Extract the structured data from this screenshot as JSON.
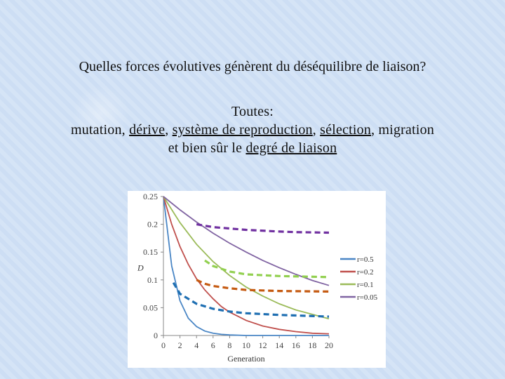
{
  "question": "Quelles forces évolutives génèrent du déséquilibre de liaison?",
  "answer": {
    "line1": "Toutes:",
    "line2_segments": [
      {
        "text": "mutation, ",
        "underline": false
      },
      {
        "text": "dérive",
        "underline": true
      },
      {
        "text": ", ",
        "underline": false
      },
      {
        "text": "système de reproduction",
        "underline": true
      },
      {
        "text": ", ",
        "underline": false
      },
      {
        "text": "sélection",
        "underline": true
      },
      {
        "text": ", migration",
        "underline": false
      }
    ],
    "line3_prefix": "et bien sûr le ",
    "line3_underlined": "degré de liaison"
  },
  "chart_data": {
    "type": "line",
    "xlabel": "Generation",
    "ylabel": "D",
    "xlim": [
      0,
      20
    ],
    "ylim": [
      0,
      0.25
    ],
    "x_ticks": [
      "0",
      "2",
      "4",
      "6",
      "8",
      "10",
      "12",
      "14",
      "16",
      "18",
      "20"
    ],
    "y_ticks": [
      "0",
      "0.05",
      "0.1",
      "0.15",
      "0.2",
      "0.25"
    ],
    "legend_position": "right",
    "series": [
      {
        "name": "r=0.5",
        "color": "#4a86c5",
        "x": [
          0,
          1,
          2,
          3,
          4,
          5,
          6,
          7,
          8,
          10,
          12,
          14,
          16,
          18,
          20
        ],
        "values": [
          0.25,
          0.125,
          0.0625,
          0.031,
          0.016,
          0.008,
          0.004,
          0.002,
          0.001,
          0.0,
          0.0,
          0.0,
          0.0,
          0.0,
          0.0
        ]
      },
      {
        "name": "r=0.2",
        "color": "#c0504d",
        "x": [
          0,
          1,
          2,
          3,
          4,
          5,
          6,
          7,
          8,
          10,
          12,
          14,
          16,
          18,
          20
        ],
        "values": [
          0.25,
          0.2,
          0.16,
          0.128,
          0.102,
          0.082,
          0.066,
          0.052,
          0.042,
          0.027,
          0.017,
          0.011,
          0.007,
          0.004,
          0.003
        ]
      },
      {
        "name": "r=0.1",
        "color": "#9bbb59",
        "x": [
          0,
          2,
          4,
          6,
          8,
          10,
          12,
          14,
          16,
          18,
          20
        ],
        "values": [
          0.25,
          0.203,
          0.164,
          0.133,
          0.108,
          0.087,
          0.071,
          0.057,
          0.046,
          0.038,
          0.03
        ]
      },
      {
        "name": "r=0.05",
        "color": "#8064a2",
        "x": [
          0,
          2,
          4,
          6,
          8,
          10,
          12,
          14,
          16,
          18,
          20
        ],
        "values": [
          0.25,
          0.226,
          0.204,
          0.184,
          0.166,
          0.15,
          0.135,
          0.122,
          0.11,
          0.099,
          0.09
        ]
      }
    ],
    "dashed_overlays": [
      {
        "color": "#7030a0",
        "x": [
          4,
          6,
          10,
          14,
          16,
          20
        ],
        "values": [
          0.2,
          0.195,
          0.19,
          0.187,
          0.186,
          0.185
        ]
      },
      {
        "color": "#92d050",
        "x": [
          5,
          6,
          8,
          10,
          14,
          20
        ],
        "values": [
          0.135,
          0.125,
          0.115,
          0.11,
          0.107,
          0.105
        ]
      },
      {
        "color": "#c55a11",
        "x": [
          4,
          5,
          6,
          8,
          10,
          14,
          20
        ],
        "values": [
          0.1,
          0.093,
          0.089,
          0.085,
          0.082,
          0.08,
          0.079
        ]
      },
      {
        "color": "#1f6fb2",
        "x": [
          1.2,
          2,
          4,
          6,
          8,
          10,
          14,
          20
        ],
        "values": [
          0.095,
          0.075,
          0.057,
          0.048,
          0.043,
          0.04,
          0.037,
          0.034
        ]
      }
    ]
  }
}
